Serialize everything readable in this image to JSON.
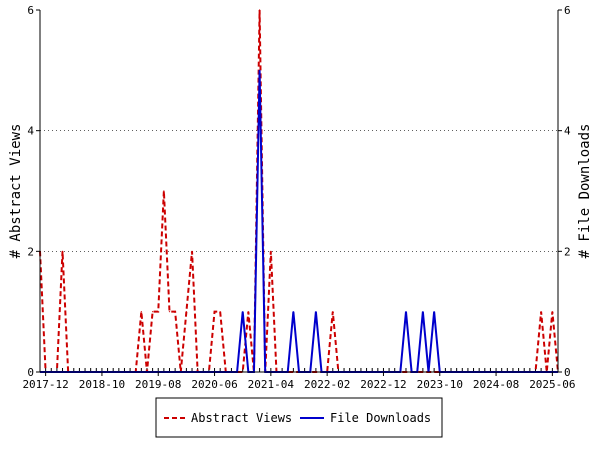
{
  "chart_data": {
    "type": "line",
    "ylabel_left": "# Abstract Views",
    "ylabel_right": "# File Downloads",
    "ylim_left": [
      0,
      6
    ],
    "ylim_right": [
      0,
      6
    ],
    "yticks_left": [
      "0",
      "2",
      "4",
      "6"
    ],
    "yticks_right": [
      "0",
      "2",
      "4",
      "6"
    ],
    "xlim": [
      "2017-11",
      "2025-07"
    ],
    "xtick_labels": [
      "2017-12",
      "2018-10",
      "2019-08",
      "2020-06",
      "2021-04",
      "2022-02",
      "2022-12",
      "2023-10",
      "2024-08",
      "2025-06"
    ],
    "xtick_dates": [
      "2017-12",
      "2018-10",
      "2019-08",
      "2020-06",
      "2021-04",
      "2022-02",
      "2022-12",
      "2023-10",
      "2024-08",
      "2025-06"
    ],
    "x": [
      "2017-11",
      "2017-12",
      "2018-01",
      "2018-02",
      "2018-03",
      "2018-04",
      "2018-05",
      "2018-06",
      "2018-07",
      "2018-08",
      "2018-09",
      "2018-10",
      "2018-11",
      "2018-12",
      "2019-01",
      "2019-02",
      "2019-03",
      "2019-04",
      "2019-05",
      "2019-06",
      "2019-07",
      "2019-08",
      "2019-09",
      "2019-10",
      "2019-11",
      "2019-12",
      "2020-01",
      "2020-02",
      "2020-03",
      "2020-04",
      "2020-05",
      "2020-06",
      "2020-07",
      "2020-08",
      "2020-09",
      "2020-10",
      "2020-11",
      "2020-12",
      "2021-01",
      "2021-02",
      "2021-03",
      "2021-04",
      "2021-05",
      "2021-06",
      "2021-07",
      "2021-08",
      "2021-09",
      "2021-10",
      "2021-11",
      "2021-12",
      "2022-01",
      "2022-02",
      "2022-03",
      "2022-04",
      "2022-05",
      "2022-06",
      "2022-07",
      "2022-08",
      "2022-09",
      "2022-10",
      "2022-11",
      "2022-12",
      "2023-01",
      "2023-02",
      "2023-03",
      "2023-04",
      "2023-05",
      "2023-06",
      "2023-07",
      "2023-08",
      "2023-09",
      "2023-10",
      "2023-11",
      "2023-12",
      "2024-01",
      "2024-02",
      "2024-03",
      "2024-04",
      "2024-05",
      "2024-06",
      "2024-07",
      "2024-08",
      "2024-09",
      "2024-10",
      "2024-11",
      "2024-12",
      "2025-01",
      "2025-02",
      "2025-03",
      "2025-04",
      "2025-05",
      "2025-06",
      "2025-07"
    ],
    "series": [
      {
        "name": "Abstract Views",
        "axis": "left",
        "color": "#cc0000",
        "dash": "dashed",
        "values": [
          2,
          0,
          0,
          0,
          2,
          0,
          0,
          0,
          0,
          0,
          0,
          0,
          0,
          0,
          0,
          0,
          0,
          0,
          1,
          0,
          1,
          1,
          3,
          1,
          1,
          0,
          1,
          2,
          0,
          0,
          0,
          1,
          1,
          0,
          0,
          0,
          0,
          1,
          0,
          6,
          0,
          2,
          0,
          0,
          0,
          0,
          0,
          0,
          0,
          0,
          0,
          0,
          1,
          0,
          0,
          0,
          0,
          0,
          0,
          0,
          0,
          0,
          0,
          0,
          0,
          0,
          0,
          0,
          0,
          0,
          0,
          0,
          0,
          0,
          0,
          0,
          0,
          0,
          0,
          0,
          0,
          0,
          0,
          0,
          0,
          0,
          0,
          0,
          0,
          1,
          0,
          1,
          0
        ]
      },
      {
        "name": "File Downloads",
        "axis": "right",
        "color": "#0000cc",
        "dash": "solid",
        "values": [
          0,
          0,
          0,
          0,
          0,
          0,
          0,
          0,
          0,
          0,
          0,
          0,
          0,
          0,
          0,
          0,
          0,
          0,
          0,
          0,
          0,
          0,
          0,
          0,
          0,
          0,
          0,
          0,
          0,
          0,
          0,
          0,
          0,
          0,
          0,
          0,
          1,
          0,
          0,
          5,
          0,
          0,
          0,
          0,
          0,
          1,
          0,
          0,
          0,
          1,
          0,
          0,
          0,
          0,
          0,
          0,
          0,
          0,
          0,
          0,
          0,
          0,
          0,
          0,
          0,
          1,
          0,
          0,
          1,
          0,
          1,
          0,
          0,
          0,
          0,
          0,
          0,
          0,
          0,
          0,
          0,
          0,
          0,
          0,
          0,
          0,
          0,
          0,
          0,
          0,
          0,
          0,
          0
        ]
      }
    ],
    "legend": {
      "placement": "bottom-center",
      "items": [
        "Abstract Views",
        "File Downloads"
      ]
    }
  }
}
